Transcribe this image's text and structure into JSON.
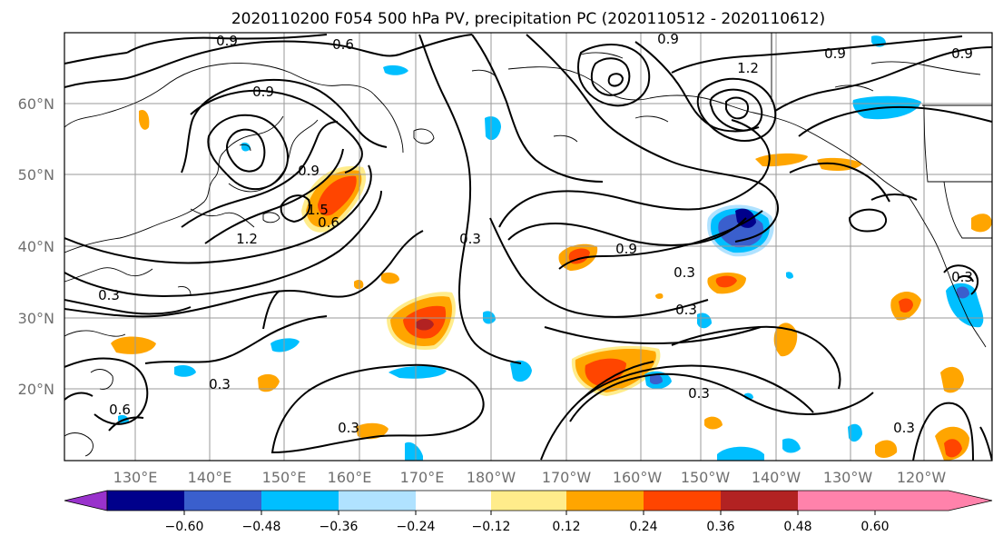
{
  "title": "2020110200 F054 500 hPa PV, precipitation PC (2020110512 - 2020110612)",
  "lat_labels": [
    "60°N",
    "50°N",
    "40°N",
    "30°N",
    "20°N"
  ],
  "lon_labels": [
    "130°E",
    "140°E",
    "150°E",
    "160°E",
    "170°E",
    "180°W",
    "170°W",
    "160°W",
    "150°W",
    "140°W",
    "130°W",
    "120°W"
  ],
  "colorbar": {
    "ticks": [
      "−0.60",
      "−0.48",
      "−0.36",
      "−0.24",
      "−0.12",
      "0.12",
      "0.24",
      "0.36",
      "0.48",
      "0.60"
    ],
    "colors": [
      "#9932cc",
      "#00008b",
      "#3a5fcd",
      "#00bfff",
      "#b0e2ff",
      "#ffffff",
      "#ffec8b",
      "#ffa500",
      "#ff4500",
      "#b22222",
      "#ff82ab"
    ]
  },
  "contour_labels": [
    "0.9",
    "0.6",
    "0.9",
    "1.2",
    "1.5",
    "0.9",
    "1.2",
    "0.9",
    "0.6",
    "0.3",
    "0.3",
    "0.3",
    "0.9",
    "0.3",
    "0.3",
    "0.3",
    "0.3",
    "0.6",
    "0.3",
    "0.9",
    "0.3",
    "0.9"
  ],
  "chart_data": {
    "type": "map",
    "title": "2020110200 F054 500 hPa PV, precipitation PC (2020110512 - 2020110612)",
    "projection": "equirectangular",
    "lon_range": [
      120,
      245
    ],
    "lat_range": [
      10,
      70
    ],
    "contour_field": "500 hPa PV",
    "contour_levels": [
      0.3,
      0.6,
      0.9,
      1.2,
      1.5
    ],
    "fill_field": "precipitation PC",
    "fill_levels": [
      -0.6,
      -0.48,
      -0.36,
      -0.24,
      -0.12,
      0.12,
      0.24,
      0.36,
      0.48,
      0.6
    ],
    "gridlines": true
  }
}
